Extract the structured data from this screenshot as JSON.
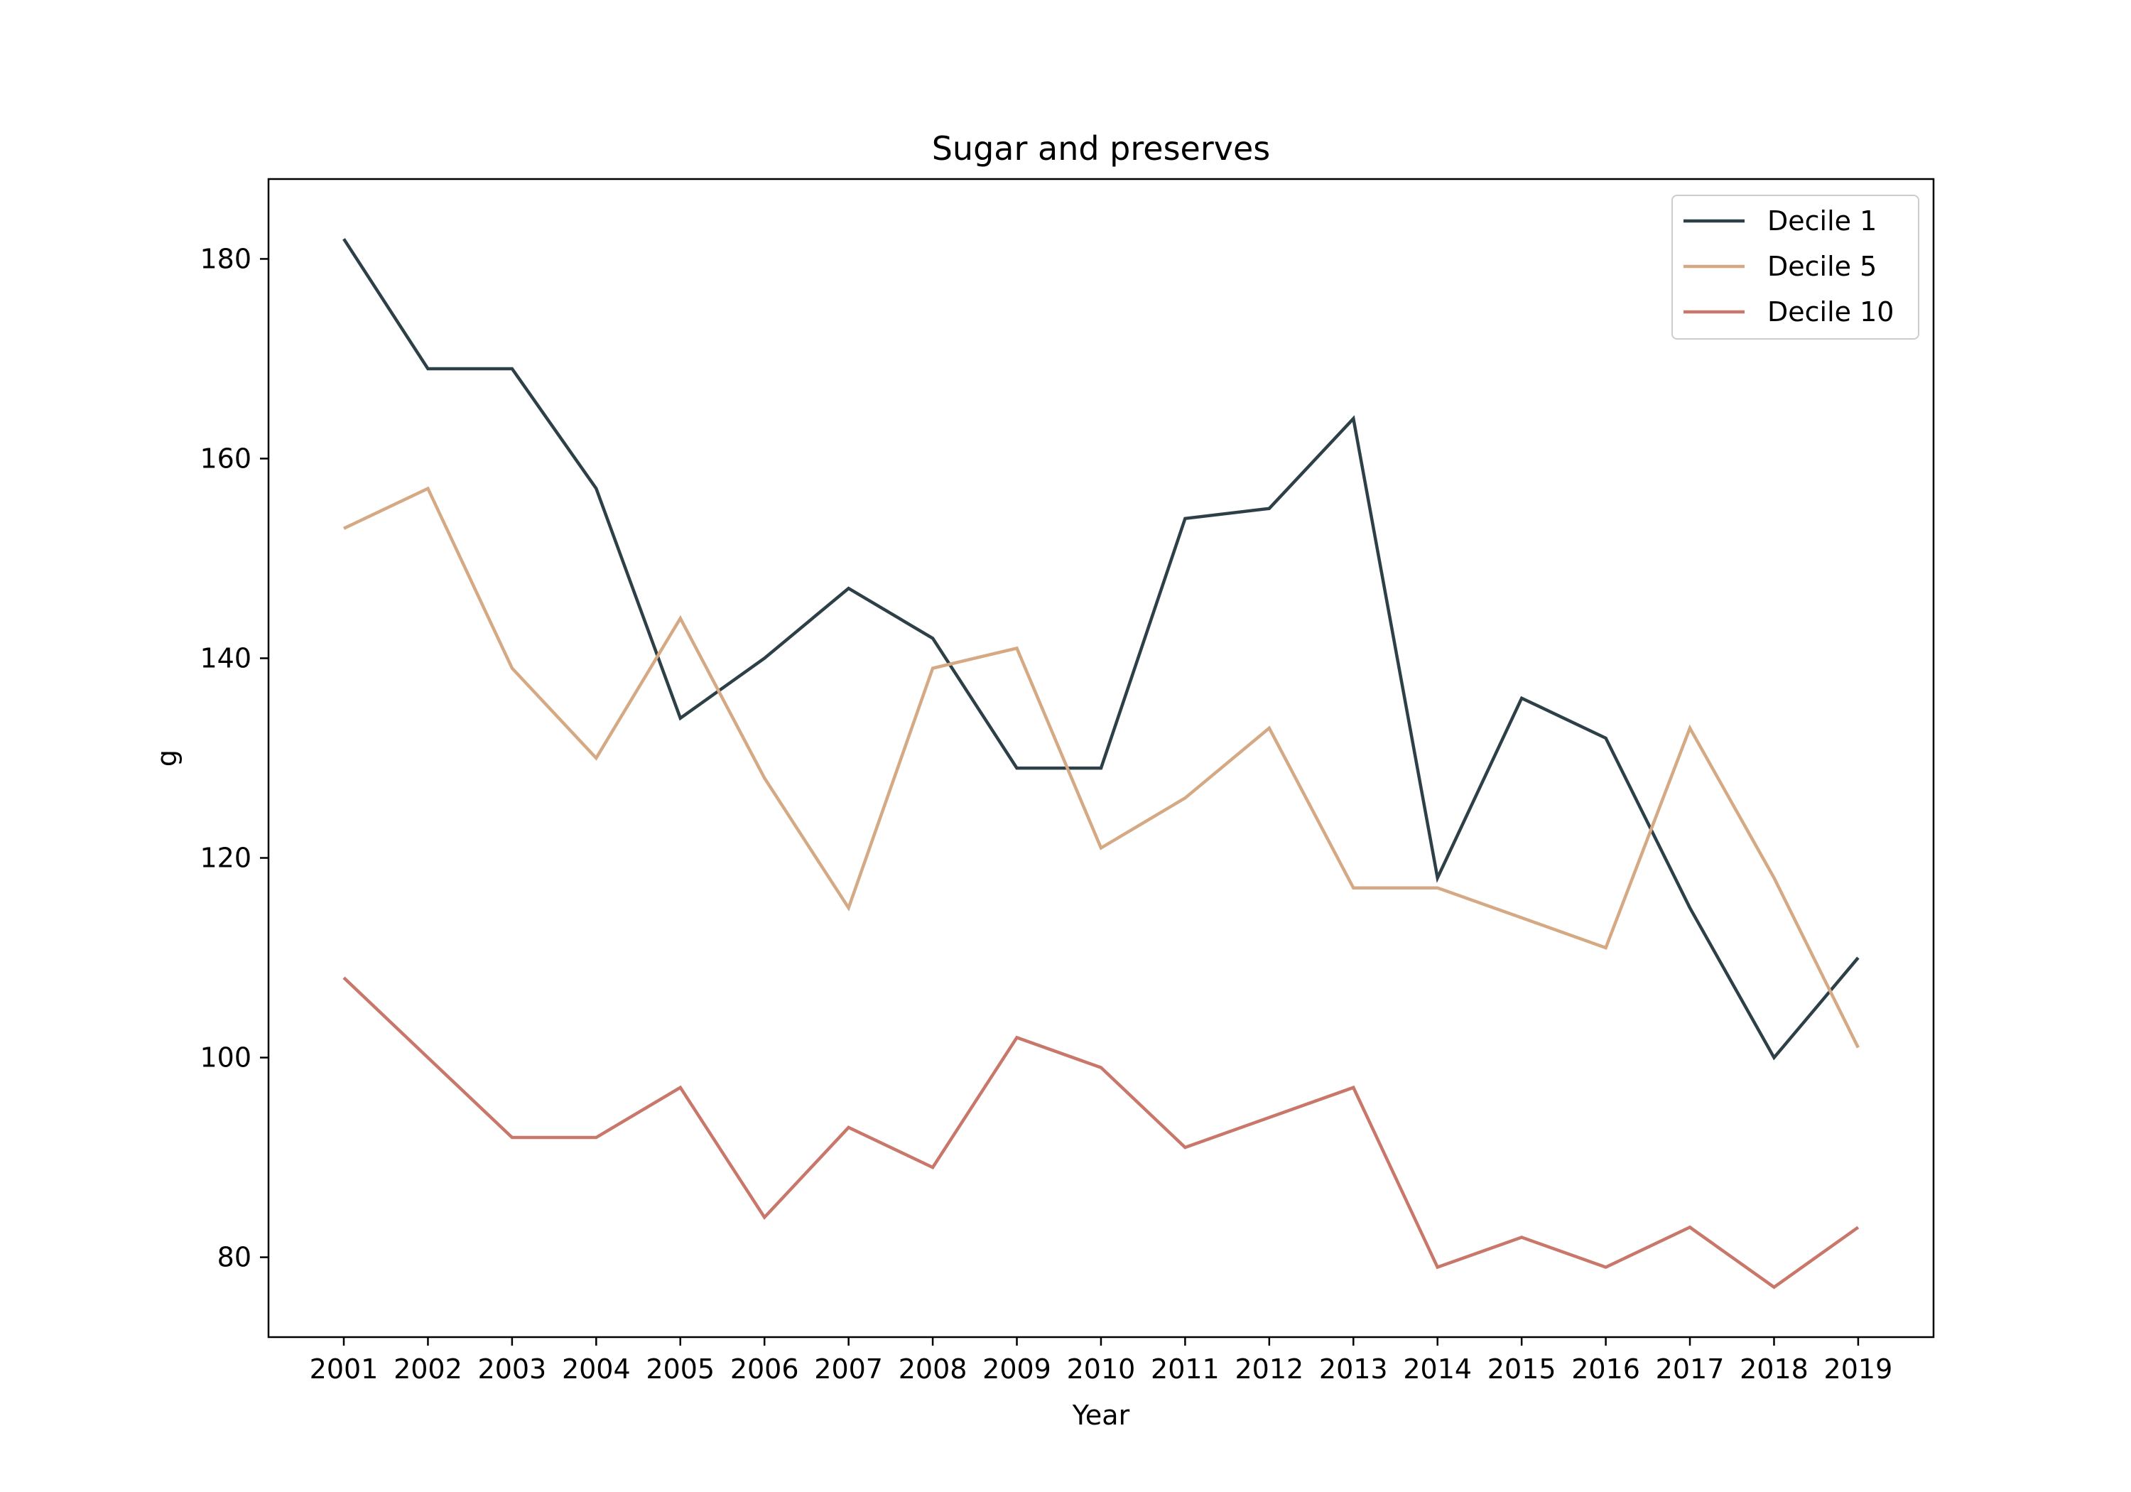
{
  "chart_data": {
    "type": "line",
    "title": "Sugar and preserves",
    "xlabel": "Year",
    "ylabel": "g",
    "categories": [
      "2001",
      "2002",
      "2003",
      "2004",
      "2005",
      "2006",
      "2007",
      "2008",
      "2009",
      "2010",
      "2011",
      "2012",
      "2013",
      "2014",
      "2015",
      "2016",
      "2017",
      "2018",
      "2019"
    ],
    "yticks": [
      80,
      100,
      120,
      140,
      160,
      180
    ],
    "ylim": [
      72,
      188
    ],
    "grid": false,
    "legend_position": "top-right",
    "series": [
      {
        "name": "Decile 1",
        "color": "#2d4048",
        "values": [
          182,
          169,
          169,
          157,
          134,
          140,
          147,
          142,
          129,
          129,
          154,
          155,
          164,
          118,
          136,
          132,
          115,
          100,
          110
        ]
      },
      {
        "name": "Decile 5",
        "color": "#d4a983",
        "values": [
          153,
          157,
          139,
          130,
          144,
          128,
          115,
          139,
          141,
          121,
          126,
          133,
          117,
          117,
          114,
          111,
          133,
          118,
          101
        ]
      },
      {
        "name": "Decile 10",
        "color": "#c8776a",
        "values": [
          108,
          100,
          92,
          92,
          97,
          84,
          93,
          89,
          102,
          99,
          91,
          94,
          97,
          79,
          82,
          79,
          83,
          77,
          83
        ]
      }
    ]
  }
}
